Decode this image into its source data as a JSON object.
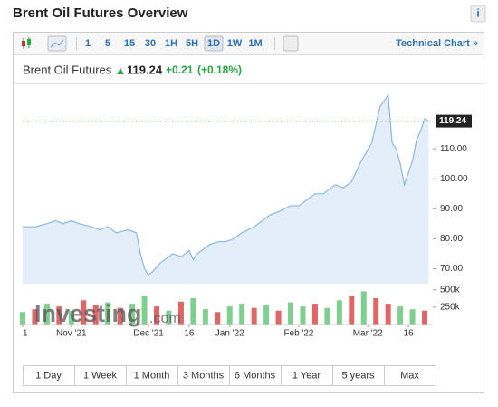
{
  "header": {
    "title": "Brent Oil Futures Overview",
    "info": "i"
  },
  "toolbar": {
    "intervals": [
      "1",
      "5",
      "15",
      "30",
      "1H",
      "5H",
      "1D",
      "1W",
      "1M"
    ],
    "active": "1D",
    "link": "Technical Chart »"
  },
  "quote": {
    "name": "Brent Oil Futures",
    "change": "+0.21",
    "change_pct": "(+0.18%)"
  },
  "ranges": [
    "1 Day",
    "1 Week",
    "1 Month",
    "3 Months",
    "6 Months",
    "1 Year",
    "5 years",
    "Max"
  ],
  "chart_data": [
    {
      "type": "area",
      "color": "#8ab8e0",
      "last_price": 119.24,
      "last_color": "#c0392b",
      "x": [
        0,
        3,
        6,
        8,
        10,
        12,
        14,
        17,
        19,
        21,
        23,
        26,
        28,
        29,
        30,
        31,
        32,
        34,
        37,
        39,
        41,
        42,
        43,
        46,
        48,
        50,
        52,
        54,
        57,
        59,
        61,
        63,
        66,
        68,
        70,
        72,
        74,
        77,
        79,
        81,
        83,
        86,
        88,
        90,
        91,
        92,
        93,
        94,
        96,
        97,
        98,
        99,
        100
      ],
      "values": [
        84,
        84,
        85,
        86,
        85,
        86,
        85,
        84,
        83,
        84,
        82,
        83,
        82,
        75,
        70,
        68,
        69,
        72,
        75,
        74,
        76,
        73,
        75,
        78,
        79,
        79,
        80,
        82,
        84,
        86,
        88,
        89,
        91,
        91,
        93,
        95,
        95,
        98,
        97,
        99,
        105,
        112,
        124,
        128,
        112,
        110,
        105,
        98,
        106,
        113,
        116,
        120,
        119.24
      ],
      "xlim": [
        0,
        101
      ],
      "xticks": [
        {
          "value": 0,
          "label": "1"
        },
        {
          "value": 12,
          "label": "Nov '21"
        },
        {
          "value": 31,
          "label": "Dec '21"
        },
        {
          "value": 41,
          "label": "16"
        },
        {
          "value": 51,
          "label": "Jan '22"
        },
        {
          "value": 68,
          "label": "Feb '22"
        },
        {
          "value": 85,
          "label": "Mar '22"
        },
        {
          "value": 95,
          "label": "16"
        }
      ],
      "ylim": [
        65,
        130
      ],
      "yticks": [
        {
          "value": 70,
          "label": "70.00"
        },
        {
          "value": 80,
          "label": "80.00"
        },
        {
          "value": 90,
          "label": "90.00"
        },
        {
          "value": 100,
          "label": "100.00"
        },
        {
          "value": 110,
          "label": "110.00"
        }
      ]
    },
    {
      "type": "bar",
      "watermark": {
        "main": "Investing",
        "suffix": ".com"
      },
      "x": [
        0,
        3,
        6,
        9,
        12,
        15,
        18,
        21,
        24,
        27,
        30,
        33,
        36,
        39,
        42,
        45,
        48,
        51,
        54,
        57,
        60,
        63,
        66,
        69,
        72,
        75,
        78,
        81,
        84,
        87,
        90,
        93,
        96,
        99
      ],
      "values": [
        180000,
        220000,
        300000,
        260000,
        200000,
        350000,
        280000,
        320000,
        240000,
        300000,
        420000,
        260000,
        200000,
        330000,
        380000,
        220000,
        180000,
        260000,
        300000,
        240000,
        280000,
        200000,
        320000,
        260000,
        300000,
        240000,
        350000,
        420000,
        480000,
        380000,
        300000,
        260000,
        220000,
        200000
      ],
      "colors": [
        "#7fcf8f",
        "#e06666",
        "#7fcf8f",
        "#e06666",
        "#7fcf8f",
        "#e06666",
        "#e06666",
        "#7fcf8f",
        "#e06666",
        "#7fcf8f",
        "#7fcf8f",
        "#e06666",
        "#7fcf8f",
        "#e06666",
        "#7fcf8f",
        "#7fcf8f",
        "#e06666",
        "#7fcf8f",
        "#7fcf8f",
        "#e06666",
        "#7fcf8f",
        "#e06666",
        "#7fcf8f",
        "#7fcf8f",
        "#e06666",
        "#7fcf8f",
        "#7fcf8f",
        "#e06666",
        "#7fcf8f",
        "#e06666",
        "#e06666",
        "#7fcf8f",
        "#7fcf8f",
        "#e06666"
      ],
      "ylim": [
        0,
        550000
      ],
      "yticks": [
        {
          "value": 500000,
          "label": "500k"
        },
        {
          "value": 250000,
          "label": "250k"
        }
      ]
    }
  ]
}
